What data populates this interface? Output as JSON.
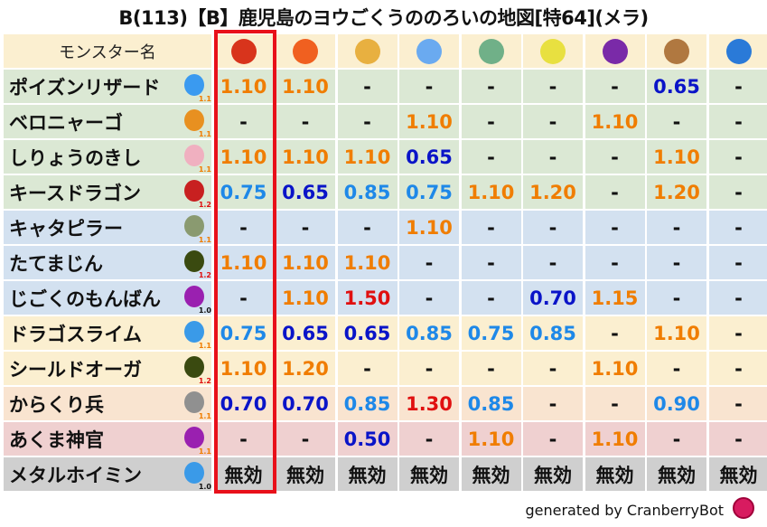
{
  "title": "B(113)【B】鹿児島のヨウごくうののろいの地図[特64](メラ)",
  "header_label": "モンスター名",
  "element_icons": [
    "fire-ball-icon",
    "flame-icon",
    "explosion-icon",
    "ice-crystal-icon",
    "tornado-icon",
    "lightning-icon",
    "darkness-icon",
    "rock-icon",
    "water-wave-icon"
  ],
  "element_colors": [
    "#d8341c",
    "#f06020",
    "#e8b040",
    "#6aaaf0",
    "#70b088",
    "#e8e040",
    "#7a2aa8",
    "#b07840",
    "#2a7ad8"
  ],
  "highlight_column": 0,
  "colors": {
    "red_box": "#e8101a",
    "orange": "#f07d00",
    "red": "#e01010",
    "dark_blue": "#0a14c8",
    "light_blue": "#1e88e8",
    "black": "#111111"
  },
  "row_colors": {
    "green": "#dbe8d4",
    "blue": "#d3e1f0",
    "yellow": "#fbefd0",
    "peach": "#f9e4d0",
    "pink": "#efd0d0",
    "gray": "#cfcfcf"
  },
  "rows": [
    {
      "name": "ポイズンリザード",
      "icon": "water-drop-icon",
      "mult": "1.1",
      "bg": "green",
      "values": [
        "1.10",
        "1.10",
        "-",
        "-",
        "-",
        "-",
        "-",
        "0.65",
        "-"
      ]
    },
    {
      "name": "ベロニャーゴ",
      "icon": "paw-icon",
      "mult": "1.1",
      "bg": "green",
      "values": [
        "-",
        "-",
        "-",
        "1.10",
        "-",
        "-",
        "1.10",
        "-",
        "-"
      ]
    },
    {
      "name": "しりょうのきし",
      "icon": "skull-icon",
      "mult": "1.1",
      "bg": "green",
      "values": [
        "1.10",
        "1.10",
        "1.10",
        "0.65",
        "-",
        "-",
        "-",
        "1.10",
        "-"
      ]
    },
    {
      "name": "キースドラゴン",
      "icon": "dragon-icon",
      "mult": "1.2",
      "bg": "green",
      "values": [
        "0.75",
        "0.65",
        "0.85",
        "0.75",
        "1.10",
        "1.20",
        "-",
        "1.20",
        "-"
      ]
    },
    {
      "name": "キャタピラー",
      "icon": "insect-icon",
      "mult": "1.1",
      "bg": "blue",
      "values": [
        "-",
        "-",
        "-",
        "1.10",
        "-",
        "-",
        "-",
        "-",
        "-"
      ]
    },
    {
      "name": "たてまじん",
      "icon": "material-icon",
      "mult": "1.2",
      "bg": "blue",
      "values": [
        "1.10",
        "1.10",
        "1.10",
        "-",
        "-",
        "-",
        "-",
        "-",
        "-"
      ]
    },
    {
      "name": "じごくのもんばん",
      "icon": "demon-icon",
      "mult": "1.0",
      "bg": "blue",
      "values": [
        "-",
        "1.10",
        "1.50",
        "-",
        "-",
        "0.70",
        "1.15",
        "-",
        "-"
      ]
    },
    {
      "name": "ドラゴスライム",
      "icon": "slime-icon",
      "mult": "1.1",
      "bg": "yellow",
      "values": [
        "0.75",
        "0.65",
        "0.65",
        "0.85",
        "0.75",
        "0.85",
        "-",
        "1.10",
        "-"
      ]
    },
    {
      "name": "シールドオーガ",
      "icon": "material-icon",
      "mult": "1.2",
      "bg": "yellow",
      "values": [
        "1.10",
        "1.20",
        "-",
        "-",
        "-",
        "-",
        "1.10",
        "-",
        "-"
      ]
    },
    {
      "name": "からくり兵",
      "icon": "gear-icon",
      "mult": "1.1",
      "bg": "peach",
      "values": [
        "0.70",
        "0.70",
        "0.85",
        "1.30",
        "0.85",
        "-",
        "-",
        "0.90",
        "-"
      ]
    },
    {
      "name": "あくま神官",
      "icon": "demon-icon",
      "mult": "1.1",
      "bg": "pink",
      "values": [
        "-",
        "-",
        "0.50",
        "-",
        "1.10",
        "-",
        "1.10",
        "-",
        "-"
      ]
    },
    {
      "name": "メタルホイミン",
      "icon": "slime-icon",
      "mult": "1.0",
      "bg": "gray",
      "values": [
        "無効",
        "無効",
        "無効",
        "無効",
        "無効",
        "無効",
        "無効",
        "無効",
        "無効"
      ]
    }
  ],
  "footer": "generated by CranberryBot"
}
